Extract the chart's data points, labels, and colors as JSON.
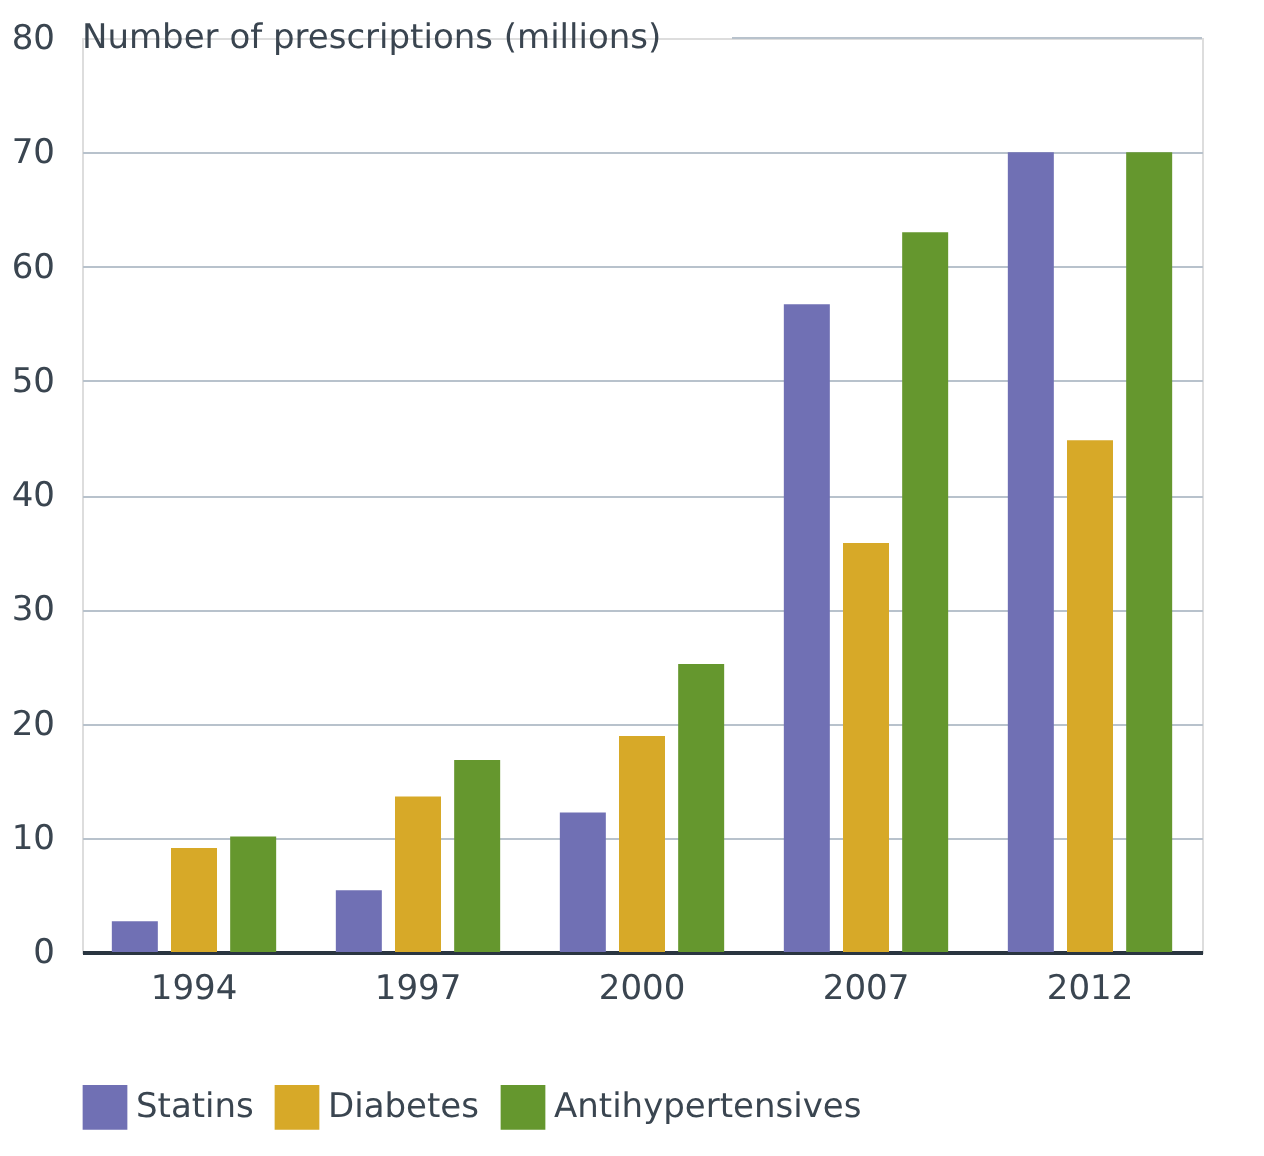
{
  "chart_data": {
    "type": "bar",
    "ylabel": "Number of prescriptions (millions)",
    "categories": [
      "1994",
      "1997",
      "2000",
      "2007",
      "2012"
    ],
    "series": [
      {
        "name": "Statins",
        "color": "#7070b4",
        "values": [
          2.7,
          5.4,
          12.2,
          56.7,
          70
        ]
      },
      {
        "name": "Diabetes",
        "color": "#d7a928",
        "values": [
          9.1,
          13.6,
          18.9,
          35.8,
          44.8
        ]
      },
      {
        "name": "Antihypertensives",
        "color": "#65972e",
        "values": [
          10.1,
          16.8,
          25.2,
          63,
          70
        ]
      }
    ],
    "ylim": [
      0,
      80
    ],
    "yticks": [
      0,
      10,
      20,
      30,
      40,
      50,
      60,
      70,
      80
    ],
    "grid": "y",
    "legend": "bottom"
  }
}
